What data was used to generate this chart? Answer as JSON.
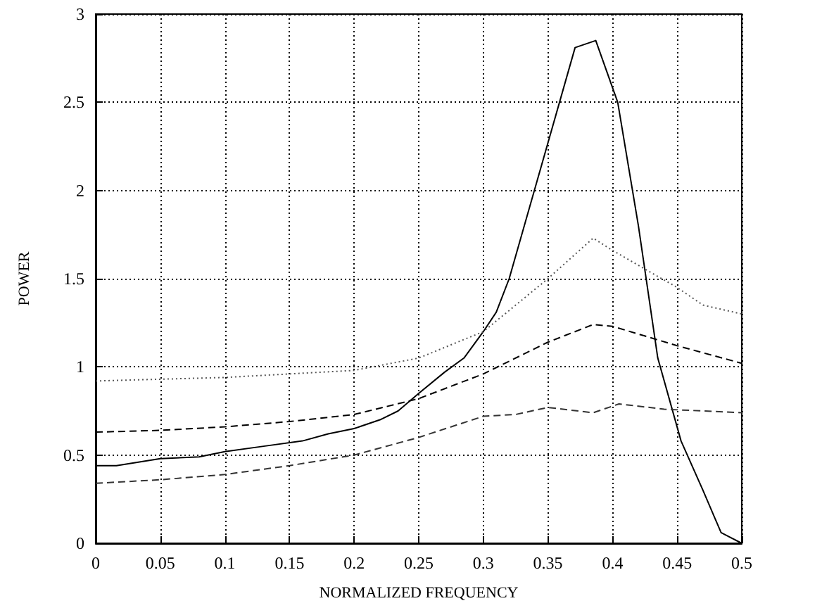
{
  "chart_data": {
    "type": "line",
    "xlabel": "NORMALIZED FREQUENCY",
    "ylabel": "POWER",
    "xlim": [
      0,
      0.5
    ],
    "xticks": [
      0,
      0.05,
      0.1,
      0.15,
      0.2,
      0.25,
      0.3,
      0.35,
      0.4,
      0.45,
      0.5
    ],
    "ylim": [
      0,
      3
    ],
    "yticks": [
      0,
      0.5,
      1,
      1.5,
      2,
      2.5,
      3
    ],
    "grid": true,
    "marker": "none",
    "series": [
      {
        "color": "#000000",
        "line_style": "solid",
        "x": [
          0,
          0.016,
          0.05,
          0.08,
          0.1,
          0.13,
          0.16,
          0.18,
          0.2,
          0.22,
          0.234,
          0.25,
          0.27,
          0.285,
          0.3,
          0.31,
          0.32,
          0.35,
          0.371,
          0.387,
          0.404,
          0.42,
          0.435,
          0.453,
          0.47,
          0.484,
          0.5
        ],
        "values": [
          0.44,
          0.44,
          0.48,
          0.49,
          0.52,
          0.55,
          0.58,
          0.62,
          0.65,
          0.7,
          0.75,
          0.85,
          0.97,
          1.05,
          1.2,
          1.31,
          1.5,
          2.27,
          2.81,
          2.85,
          2.5,
          1.8,
          1.05,
          0.58,
          0.3,
          0.06,
          0
        ]
      },
      {
        "color": "#555555",
        "line_style": "dotted",
        "x": [
          0,
          0.1,
          0.15,
          0.2,
          0.25,
          0.3,
          0.35,
          0.385,
          0.4,
          0.45,
          0.47,
          0.5
        ],
        "values": [
          0.92,
          0.94,
          0.96,
          0.98,
          1.05,
          1.2,
          1.5,
          1.73,
          1.66,
          1.45,
          1.35,
          1.3
        ]
      },
      {
        "color": "#000000",
        "line_style": "dashed",
        "x": [
          0,
          0.05,
          0.1,
          0.15,
          0.2,
          0.25,
          0.3,
          0.35,
          0.385,
          0.4,
          0.45,
          0.5
        ],
        "values": [
          0.63,
          0.64,
          0.66,
          0.69,
          0.73,
          0.82,
          0.96,
          1.14,
          1.24,
          1.23,
          1.12,
          1.02
        ]
      },
      {
        "color": "#333333",
        "line_style": "dashed",
        "x": [
          0,
          0.05,
          0.1,
          0.15,
          0.2,
          0.25,
          0.3,
          0.325,
          0.35,
          0.385,
          0.405,
          0.44,
          0.5
        ],
        "values": [
          0.34,
          0.36,
          0.39,
          0.44,
          0.5,
          0.6,
          0.72,
          0.73,
          0.77,
          0.74,
          0.79,
          0.76,
          0.74
        ]
      }
    ]
  }
}
